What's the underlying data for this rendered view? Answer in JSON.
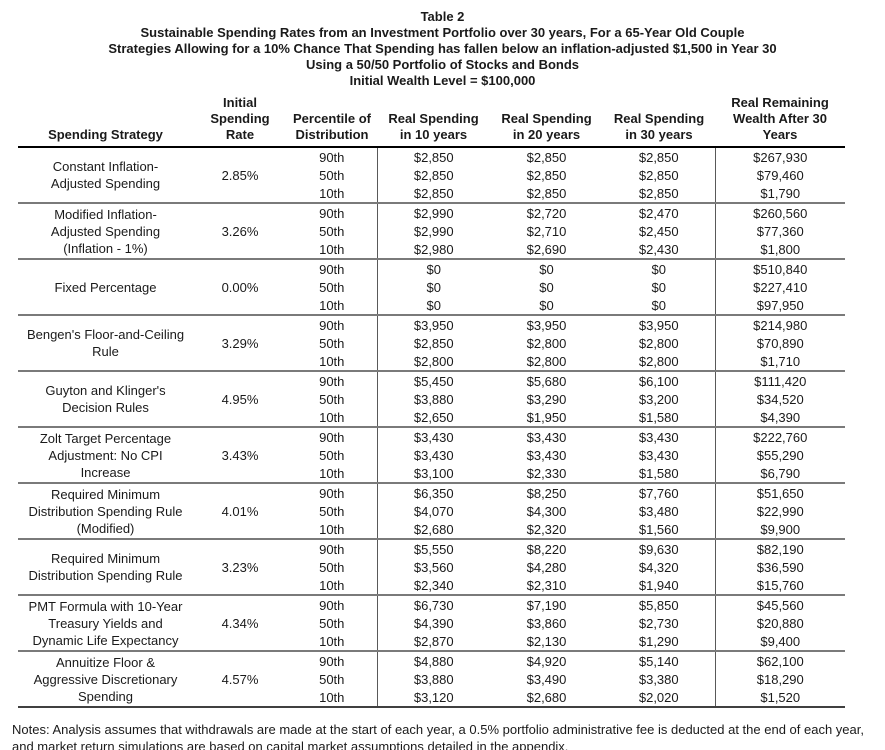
{
  "title_lines": [
    "Table 2",
    "Sustainable Spending Rates from an Investment Portfolio over 30 years, For a 65-Year Old Couple",
    "Strategies Allowing for a 10% Chance That Spending has fallen below an inflation-adjusted $1,500 in Year 30",
    "Using a 50/50 Portfolio of Stocks and Bonds",
    "Initial Wealth Level = $100,000"
  ],
  "table": {
    "headers": [
      "Spending Strategy",
      "Initial\nSpending\nRate",
      "Percentile of\nDistribution",
      "Real Spending\nin 10 years",
      "Real Spending\nin 20 years",
      "Real Spending\nin 30 years",
      "Real Remaining\nWealth After 30\nYears"
    ],
    "groups": [
      {
        "strategy": "Constant Inflation-\nAdjusted Spending",
        "rate": "2.85%",
        "rows": [
          {
            "percentile": "90th",
            "y10": "$2,850",
            "y20": "$2,850",
            "y30": "$2,850",
            "wealth": "$267,930"
          },
          {
            "percentile": "50th",
            "y10": "$2,850",
            "y20": "$2,850",
            "y30": "$2,850",
            "wealth": "$79,460"
          },
          {
            "percentile": "10th",
            "y10": "$2,850",
            "y20": "$2,850",
            "y30": "$2,850",
            "wealth": "$1,790"
          }
        ]
      },
      {
        "strategy": "Modified Inflation-\nAdjusted Spending\n(Inflation - 1%)",
        "rate": "3.26%",
        "rows": [
          {
            "percentile": "90th",
            "y10": "$2,990",
            "y20": "$2,720",
            "y30": "$2,470",
            "wealth": "$260,560"
          },
          {
            "percentile": "50th",
            "y10": "$2,990",
            "y20": "$2,710",
            "y30": "$2,450",
            "wealth": "$77,360"
          },
          {
            "percentile": "10th",
            "y10": "$2,980",
            "y20": "$2,690",
            "y30": "$2,430",
            "wealth": "$1,800"
          }
        ]
      },
      {
        "strategy": "Fixed Percentage",
        "rate": "0.00%",
        "rows": [
          {
            "percentile": "90th",
            "y10": "$0",
            "y20": "$0",
            "y30": "$0",
            "wealth": "$510,840"
          },
          {
            "percentile": "50th",
            "y10": "$0",
            "y20": "$0",
            "y30": "$0",
            "wealth": "$227,410"
          },
          {
            "percentile": "10th",
            "y10": "$0",
            "y20": "$0",
            "y30": "$0",
            "wealth": "$97,950"
          }
        ]
      },
      {
        "strategy": "Bengen's Floor-and-Ceiling\nRule",
        "rate": "3.29%",
        "rows": [
          {
            "percentile": "90th",
            "y10": "$3,950",
            "y20": "$3,950",
            "y30": "$3,950",
            "wealth": "$214,980"
          },
          {
            "percentile": "50th",
            "y10": "$2,850",
            "y20": "$2,800",
            "y30": "$2,800",
            "wealth": "$70,890"
          },
          {
            "percentile": "10th",
            "y10": "$2,800",
            "y20": "$2,800",
            "y30": "$2,800",
            "wealth": "$1,710"
          }
        ]
      },
      {
        "strategy": "Guyton and Klinger's\nDecision Rules",
        "rate": "4.95%",
        "rows": [
          {
            "percentile": "90th",
            "y10": "$5,450",
            "y20": "$5,680",
            "y30": "$6,100",
            "wealth": "$111,420"
          },
          {
            "percentile": "50th",
            "y10": "$3,880",
            "y20": "$3,290",
            "y30": "$3,200",
            "wealth": "$34,520"
          },
          {
            "percentile": "10th",
            "y10": "$2,650",
            "y20": "$1,950",
            "y30": "$1,580",
            "wealth": "$4,390"
          }
        ]
      },
      {
        "strategy": "Zolt Target Percentage\nAdjustment: No CPI\nIncrease",
        "rate": "3.43%",
        "rows": [
          {
            "percentile": "90th",
            "y10": "$3,430",
            "y20": "$3,430",
            "y30": "$3,430",
            "wealth": "$222,760"
          },
          {
            "percentile": "50th",
            "y10": "$3,430",
            "y20": "$3,430",
            "y30": "$3,430",
            "wealth": "$55,290"
          },
          {
            "percentile": "10th",
            "y10": "$3,100",
            "y20": "$2,330",
            "y30": "$1,580",
            "wealth": "$6,790"
          }
        ]
      },
      {
        "strategy": "Required Minimum\nDistribution Spending Rule\n(Modified)",
        "rate": "4.01%",
        "rows": [
          {
            "percentile": "90th",
            "y10": "$6,350",
            "y20": "$8,250",
            "y30": "$7,760",
            "wealth": "$51,650"
          },
          {
            "percentile": "50th",
            "y10": "$4,070",
            "y20": "$4,300",
            "y30": "$3,480",
            "wealth": "$22,990"
          },
          {
            "percentile": "10th",
            "y10": "$2,680",
            "y20": "$2,320",
            "y30": "$1,560",
            "wealth": "$9,900"
          }
        ]
      },
      {
        "strategy": "Required Minimum\nDistribution Spending Rule",
        "rate": "3.23%",
        "rows": [
          {
            "percentile": "90th",
            "y10": "$5,550",
            "y20": "$8,220",
            "y30": "$9,630",
            "wealth": "$82,190"
          },
          {
            "percentile": "50th",
            "y10": "$3,560",
            "y20": "$4,280",
            "y30": "$4,320",
            "wealth": "$36,590"
          },
          {
            "percentile": "10th",
            "y10": "$2,340",
            "y20": "$2,310",
            "y30": "$1,940",
            "wealth": "$15,760"
          }
        ]
      },
      {
        "strategy": "PMT Formula with 10-Year\nTreasury Yields and\nDynamic Life Expectancy",
        "rate": "4.34%",
        "rows": [
          {
            "percentile": "90th",
            "y10": "$6,730",
            "y20": "$7,190",
            "y30": "$5,850",
            "wealth": "$45,560"
          },
          {
            "percentile": "50th",
            "y10": "$4,390",
            "y20": "$3,860",
            "y30": "$2,730",
            "wealth": "$20,880"
          },
          {
            "percentile": "10th",
            "y10": "$2,870",
            "y20": "$2,130",
            "y30": "$1,290",
            "wealth": "$9,400"
          }
        ]
      },
      {
        "strategy": "Annuitize Floor &\nAggressive Discretionary\nSpending",
        "rate": "4.57%",
        "rows": [
          {
            "percentile": "90th",
            "y10": "$4,880",
            "y20": "$4,920",
            "y30": "$5,140",
            "wealth": "$62,100"
          },
          {
            "percentile": "50th",
            "y10": "$3,880",
            "y20": "$3,490",
            "y30": "$3,380",
            "wealth": "$18,290"
          },
          {
            "percentile": "10th",
            "y10": "$3,120",
            "y20": "$2,680",
            "y30": "$2,020",
            "wealth": "$1,520"
          }
        ]
      }
    ]
  },
  "notes": "Notes: Analysis assumes that withdrawals are made at the start of each year, a 0.5% portfolio administrative fee is deducted at the end of each year,\nand market return simulations are based on capital market assumptions detailed in the appendix."
}
